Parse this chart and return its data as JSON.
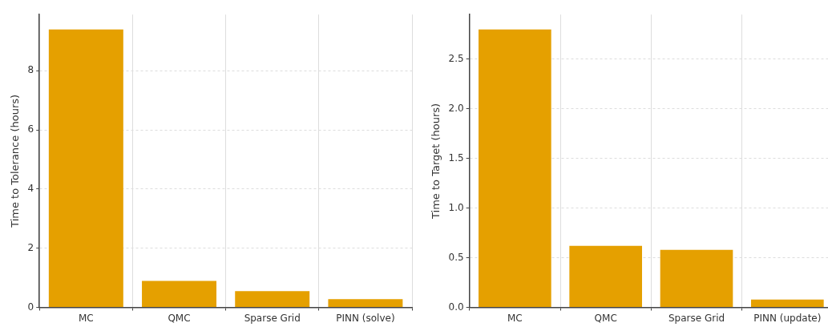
{
  "chart_data": [
    {
      "type": "bar",
      "ylabel": "Time to Tolerance (hours)",
      "categories": [
        "MC",
        "QMC",
        "Sparse Grid",
        "PINN (solve)"
      ],
      "values": [
        9.4,
        0.9,
        0.55,
        0.28
      ],
      "color": "#e5a000",
      "ylim": [
        0,
        9.9
      ],
      "yticks": [
        0,
        2,
        4,
        6,
        8
      ],
      "grid": true
    },
    {
      "type": "bar",
      "ylabel": "Time to Target (hours)",
      "categories": [
        "MC",
        "QMC",
        "Sparse Grid",
        "PINN (update)"
      ],
      "values": [
        2.8,
        0.62,
        0.58,
        0.08
      ],
      "color": "#e5a000",
      "ylim": [
        0,
        2.95
      ],
      "yticks": [
        {
          "value": 0,
          "label": "0.0"
        },
        0.5,
        {
          "value": 1,
          "label": "1.0"
        },
        1.5,
        {
          "value": 2,
          "label": "2.0"
        },
        2.5
      ],
      "grid": true
    }
  ]
}
